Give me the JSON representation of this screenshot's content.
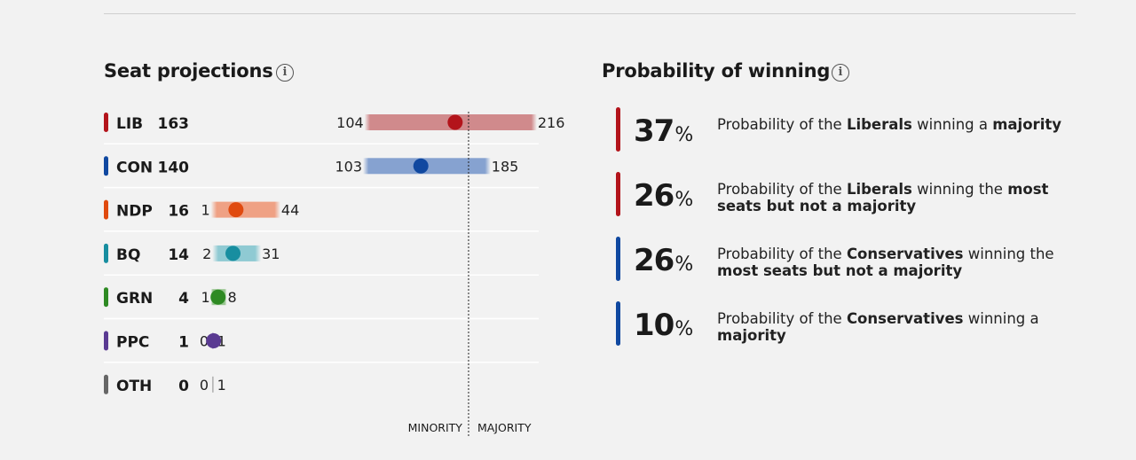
{
  "seat_projections": {
    "title": "Seat projections",
    "threshold_labels": {
      "left": "MINORITY",
      "right": "MAJORITY"
    }
  },
  "probability": {
    "title": "Probability of winning",
    "items": [
      {
        "value": "37",
        "unit": "%",
        "color": "#b3141b",
        "parts": [
          "Probability of the ",
          "Liberals",
          " winning a ",
          "majority",
          ""
        ]
      },
      {
        "value": "26",
        "unit": "%",
        "color": "#b3141b",
        "parts": [
          "Probability of the ",
          "Liberals",
          " winning the ",
          "most seats but not a majority",
          ""
        ]
      },
      {
        "value": "26",
        "unit": "%",
        "color": "#1048a0",
        "parts": [
          "Probability of the ",
          "Conservatives",
          " winning the ",
          "most seats but not a majority",
          ""
        ]
      },
      {
        "value": "10",
        "unit": "%",
        "color": "#1048a0",
        "parts": [
          "Probability of the ",
          "Conservatives",
          " winning a ",
          "majority",
          ""
        ]
      }
    ]
  },
  "chart_data": {
    "type": "range-dot",
    "title": "Seat projections",
    "majority_threshold": 172,
    "series": [
      {
        "name": "LIB",
        "projection": 163,
        "low": 104,
        "high": 216,
        "color": "#b3141b",
        "range_color": "#d08a8c"
      },
      {
        "name": "CON",
        "projection": 140,
        "low": 103,
        "high": 185,
        "color": "#1048a0",
        "range_color": "#86a2d0"
      },
      {
        "name": "NDP",
        "projection": 16,
        "low": 1,
        "high": 44,
        "color": "#e04a0f",
        "range_color": "#efa184"
      },
      {
        "name": "BQ",
        "projection": 14,
        "low": 2,
        "high": 31,
        "color": "#188ea0",
        "range_color": "#8fcad3"
      },
      {
        "name": "GRN",
        "projection": 4,
        "low": 1,
        "high": 8,
        "color": "#2e8a23",
        "range_color": "#97c58f"
      },
      {
        "name": "PPC",
        "projection": 1,
        "low": 0,
        "high": 1,
        "color": "#5a3a92",
        "range_color": "#a99bc6"
      },
      {
        "name": "OTH",
        "projection": 0,
        "low": 0,
        "high": 1,
        "color": "#666666",
        "range_color": "#b5b5b5"
      }
    ]
  }
}
